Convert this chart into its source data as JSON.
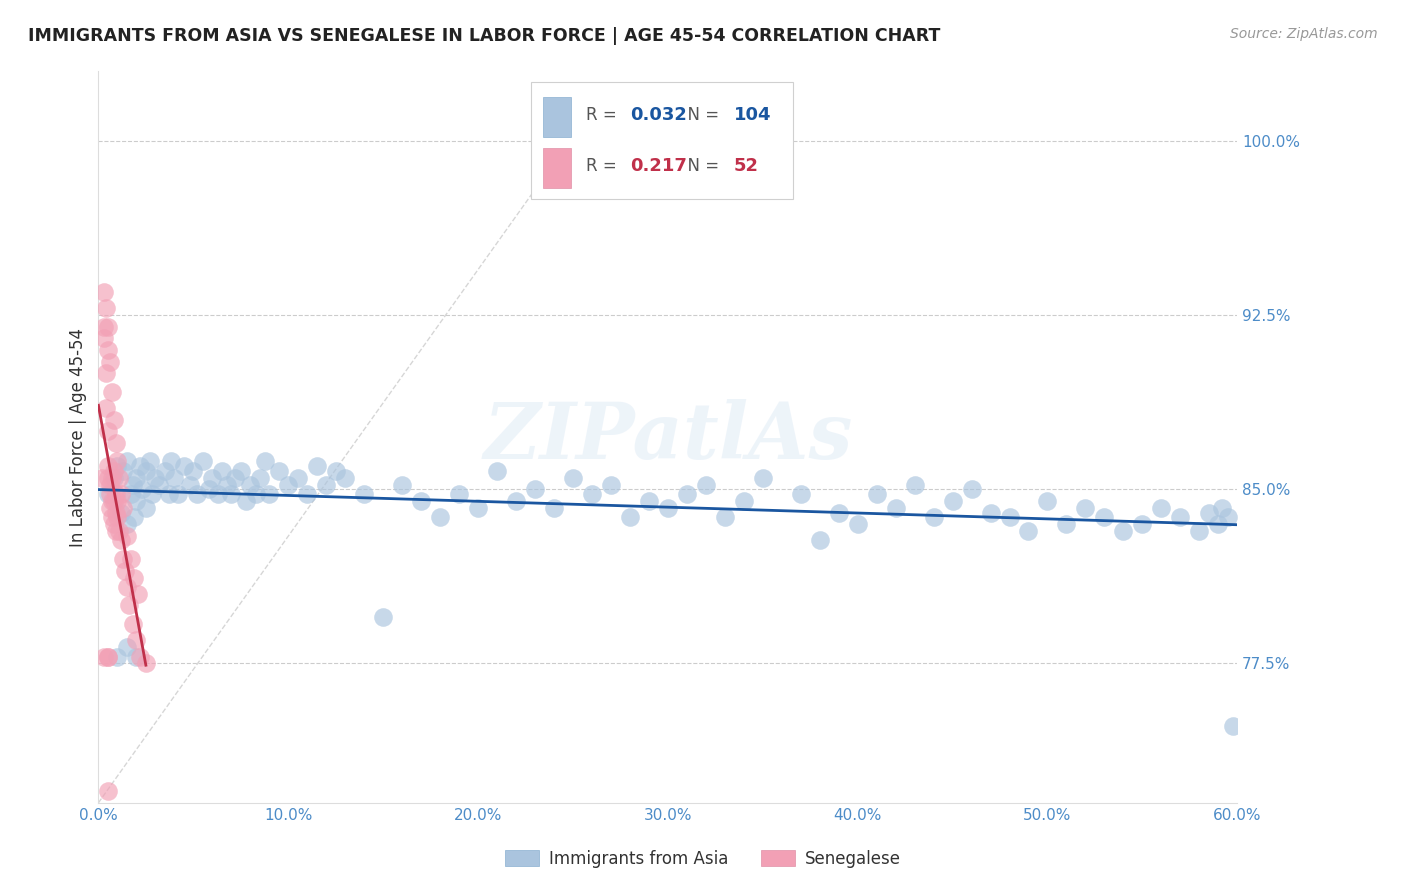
{
  "title": "IMMIGRANTS FROM ASIA VS SENEGALESE IN LABOR FORCE | AGE 45-54 CORRELATION CHART",
  "source": "Source: ZipAtlas.com",
  "ylabel": "In Labor Force | Age 45-54",
  "xlim": [
    0.0,
    0.6
  ],
  "ylim": [
    0.715,
    1.03
  ],
  "xticks": [
    0.0,
    0.1,
    0.2,
    0.3,
    0.4,
    0.5,
    0.6
  ],
  "xticklabels": [
    "0.0%",
    "10.0%",
    "20.0%",
    "30.0%",
    "40.0%",
    "50.0%",
    "60.0%"
  ],
  "yticks": [
    0.775,
    0.85,
    0.925,
    1.0
  ],
  "yticklabels": [
    "77.5%",
    "85.0%",
    "92.5%",
    "100.0%"
  ],
  "legend_labels": [
    "Immigrants from Asia",
    "Senegalese"
  ],
  "legend_r_asia": "0.032",
  "legend_n_asia": "104",
  "legend_r_sene": "0.217",
  "legend_n_sene": "52",
  "blue_color": "#aac4de",
  "pink_color": "#f2a0b5",
  "blue_line_color": "#1a56a0",
  "pink_line_color": "#c0304a",
  "tick_color": "#4d8cc8",
  "watermark": "ZIPatlAs",
  "asia_x": [
    0.005,
    0.008,
    0.01,
    0.012,
    0.013,
    0.015,
    0.015,
    0.017,
    0.018,
    0.019,
    0.02,
    0.02,
    0.022,
    0.023,
    0.025,
    0.025,
    0.027,
    0.028,
    0.03,
    0.032,
    0.035,
    0.037,
    0.038,
    0.04,
    0.042,
    0.045,
    0.048,
    0.05,
    0.052,
    0.055,
    0.058,
    0.06,
    0.063,
    0.065,
    0.068,
    0.07,
    0.072,
    0.075,
    0.078,
    0.08,
    0.083,
    0.085,
    0.088,
    0.09,
    0.095,
    0.1,
    0.105,
    0.11,
    0.115,
    0.12,
    0.125,
    0.13,
    0.14,
    0.15,
    0.16,
    0.17,
    0.18,
    0.19,
    0.2,
    0.21,
    0.22,
    0.23,
    0.24,
    0.25,
    0.26,
    0.27,
    0.28,
    0.29,
    0.3,
    0.31,
    0.32,
    0.33,
    0.34,
    0.35,
    0.37,
    0.38,
    0.39,
    0.4,
    0.41,
    0.42,
    0.43,
    0.44,
    0.45,
    0.46,
    0.47,
    0.48,
    0.49,
    0.5,
    0.51,
    0.52,
    0.53,
    0.54,
    0.55,
    0.56,
    0.57,
    0.58,
    0.585,
    0.59,
    0.592,
    0.595,
    0.598,
    0.01,
    0.015,
    0.02
  ],
  "asia_y": [
    0.848,
    0.855,
    0.86,
    0.84,
    0.858,
    0.862,
    0.835,
    0.848,
    0.852,
    0.838,
    0.855,
    0.845,
    0.86,
    0.85,
    0.858,
    0.842,
    0.862,
    0.848,
    0.855,
    0.852,
    0.858,
    0.848,
    0.862,
    0.855,
    0.848,
    0.86,
    0.852,
    0.858,
    0.848,
    0.862,
    0.85,
    0.855,
    0.848,
    0.858,
    0.852,
    0.848,
    0.855,
    0.858,
    0.845,
    0.852,
    0.848,
    0.855,
    0.862,
    0.848,
    0.858,
    0.852,
    0.855,
    0.848,
    0.86,
    0.852,
    0.858,
    0.855,
    0.848,
    0.795,
    0.852,
    0.845,
    0.838,
    0.848,
    0.842,
    0.858,
    0.845,
    0.85,
    0.842,
    0.855,
    0.848,
    0.852,
    0.838,
    0.845,
    0.842,
    0.848,
    0.852,
    0.838,
    0.845,
    0.855,
    0.848,
    0.828,
    0.84,
    0.835,
    0.848,
    0.842,
    0.852,
    0.838,
    0.845,
    0.85,
    0.84,
    0.838,
    0.832,
    0.845,
    0.835,
    0.842,
    0.838,
    0.832,
    0.835,
    0.842,
    0.838,
    0.832,
    0.84,
    0.835,
    0.842,
    0.838,
    0.748,
    0.778,
    0.782,
    0.778
  ],
  "sene_x": [
    0.002,
    0.003,
    0.003,
    0.004,
    0.004,
    0.005,
    0.005,
    0.005,
    0.006,
    0.006,
    0.006,
    0.007,
    0.007,
    0.007,
    0.008,
    0.008,
    0.008,
    0.009,
    0.009,
    0.009,
    0.01,
    0.01,
    0.011,
    0.012,
    0.013,
    0.014,
    0.015,
    0.016,
    0.018,
    0.02,
    0.022,
    0.025,
    0.003,
    0.004,
    0.005,
    0.005,
    0.006,
    0.007,
    0.008,
    0.009,
    0.01,
    0.011,
    0.012,
    0.013,
    0.015,
    0.017,
    0.019,
    0.021,
    0.003,
    0.005,
    0.005,
    0.005
  ],
  "sene_y": [
    0.855,
    0.92,
    0.915,
    0.9,
    0.885,
    0.875,
    0.86,
    0.855,
    0.848,
    0.842,
    0.852,
    0.845,
    0.855,
    0.838,
    0.845,
    0.858,
    0.835,
    0.848,
    0.84,
    0.832,
    0.845,
    0.838,
    0.832,
    0.828,
    0.82,
    0.815,
    0.808,
    0.8,
    0.792,
    0.785,
    0.778,
    0.775,
    0.935,
    0.928,
    0.92,
    0.91,
    0.905,
    0.892,
    0.88,
    0.87,
    0.862,
    0.855,
    0.848,
    0.842,
    0.83,
    0.82,
    0.812,
    0.805,
    0.778,
    0.778,
    0.778,
    0.72
  ]
}
